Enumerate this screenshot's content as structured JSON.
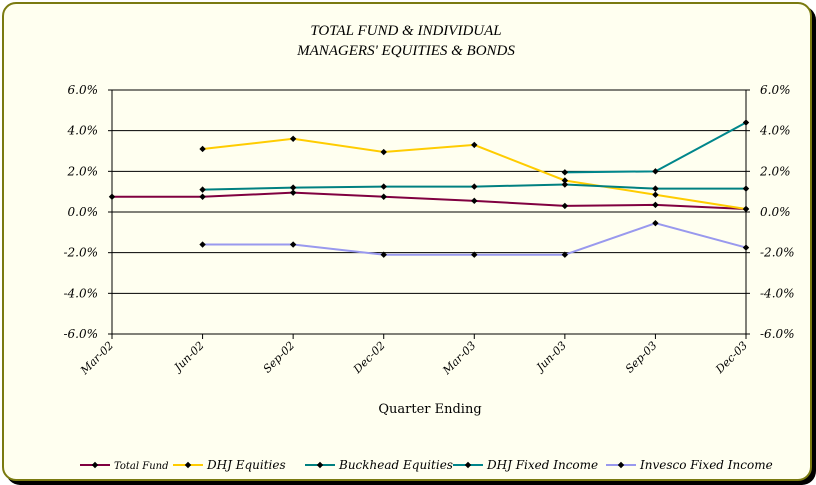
{
  "chart_data": {
    "type": "line",
    "title": [
      "TOTAL FUND  & INDIVIDUAL",
      "MANAGERS' EQUITIES & BONDS"
    ],
    "xlabel": "Quarter Ending",
    "ylabel": "",
    "categories": [
      "Mar-02",
      "Jun-02",
      "Sep-02",
      "Dec-02",
      "Mar-03",
      "Jun-03",
      "Sep-03",
      "Dec-03"
    ],
    "ylim": [
      -6.0,
      6.0
    ],
    "yticks": [
      "-6.0%",
      "-4.0%",
      "-2.0%",
      "0.0%",
      "2.0%",
      "4.0%",
      "6.0%"
    ],
    "ytick_values": [
      -6,
      -4,
      -2,
      0,
      2,
      4,
      6
    ],
    "secondary_y_axis": true,
    "grid": "horizontal",
    "legend_position": "bottom",
    "series": [
      {
        "name": "Total Fund",
        "color": "#800040",
        "values": [
          0.75,
          0.75,
          0.95,
          0.75,
          0.55,
          0.3,
          0.35,
          0.15
        ]
      },
      {
        "name": "DHJ Equities",
        "color": "#ffcc00",
        "values": [
          null,
          3.1,
          3.6,
          2.95,
          3.3,
          1.55,
          0.85,
          0.15
        ]
      },
      {
        "name": "Buckhead Equities",
        "color": "#008080",
        "values": [
          null,
          1.1,
          1.2,
          1.25,
          1.25,
          1.35,
          1.15,
          1.15
        ]
      },
      {
        "name": "DHJ Fixed Income",
        "color": "#00868b",
        "values": [
          null,
          null,
          null,
          null,
          null,
          1.95,
          2.0,
          4.4
        ]
      },
      {
        "name": "Invesco Fixed Income",
        "color": "#9999ee",
        "values": [
          null,
          -1.6,
          -1.6,
          -2.1,
          -2.1,
          -2.1,
          -0.55,
          -1.75
        ]
      }
    ]
  }
}
